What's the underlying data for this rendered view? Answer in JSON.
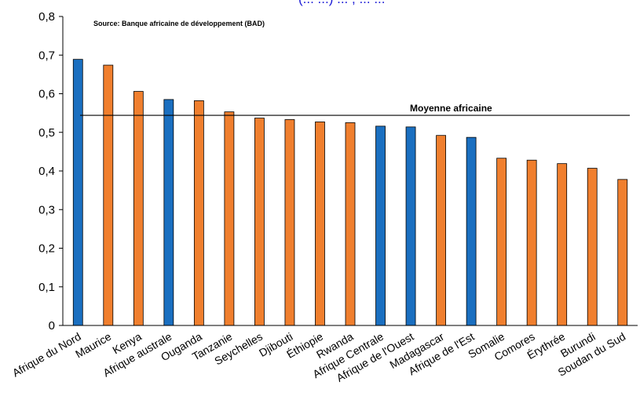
{
  "chart_data": {
    "type": "bar",
    "title": "(... ...) ... , ... ...",
    "source": "Source: Banque africaine de développement (BAD)",
    "ylim": [
      0,
      0.8
    ],
    "yticks": [
      "0",
      "0,1",
      "0,2",
      "0,3",
      "0,4",
      "0,5",
      "0,6",
      "0,7",
      "0,8"
    ],
    "grid": false,
    "categories": [
      "Afrique du Nord",
      "Maurice",
      "Kenya",
      "Afrique australe",
      "Ouganda",
      "Tanzanie",
      "Seychelles",
      "Djibouti",
      "Éthiopie",
      "Rwanda",
      "Afrique Centrale",
      "Afrique de l'Ouest",
      "Madagascar",
      "Afrique de l'Est",
      "Somalie",
      "Comores",
      "Érythrée",
      "Burundi",
      "Soudan du Sud"
    ],
    "values": [
      0.689,
      0.674,
      0.606,
      0.585,
      0.582,
      0.553,
      0.537,
      0.533,
      0.527,
      0.525,
      0.516,
      0.514,
      0.492,
      0.487,
      0.433,
      0.428,
      0.419,
      0.407,
      0.378
    ],
    "bar_kind": [
      "region",
      "country",
      "country",
      "region",
      "country",
      "country",
      "country",
      "country",
      "country",
      "country",
      "region",
      "region",
      "country",
      "region",
      "country",
      "country",
      "country",
      "country",
      "country"
    ],
    "colors": {
      "region": "#1a6fc0",
      "country": "#f07f2e",
      "edge": "#000000"
    },
    "reference_line": {
      "label": "Moyenne africaine",
      "value": 0.544
    }
  }
}
